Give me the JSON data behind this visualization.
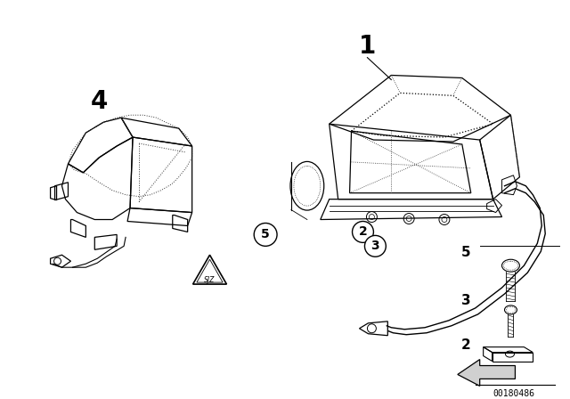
{
  "background_color": "#ffffff",
  "fig_width": 6.4,
  "fig_height": 4.48,
  "dpi": 100,
  "catalog_number": "00180486",
  "line_color": "#000000",
  "dot_line_color": "#555555"
}
